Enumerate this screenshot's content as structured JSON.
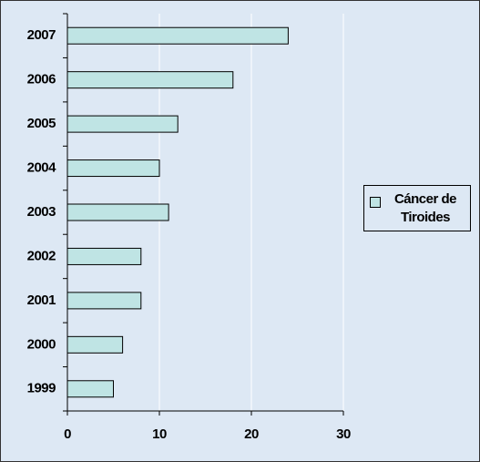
{
  "chart_data": {
    "type": "bar",
    "orientation": "horizontal",
    "categories": [
      "2007",
      "2006",
      "2005",
      "2004",
      "2003",
      "2002",
      "2001",
      "2000",
      "1999"
    ],
    "series": [
      {
        "name": "Cáncer de Tiroides",
        "color": "#bfe4e4",
        "values": [
          24,
          18,
          12,
          10,
          11,
          8,
          8,
          6,
          5
        ]
      }
    ],
    "xlim": [
      0,
      30
    ],
    "xticks": [
      0,
      10,
      20,
      30
    ],
    "grid": true,
    "legend": "right"
  }
}
